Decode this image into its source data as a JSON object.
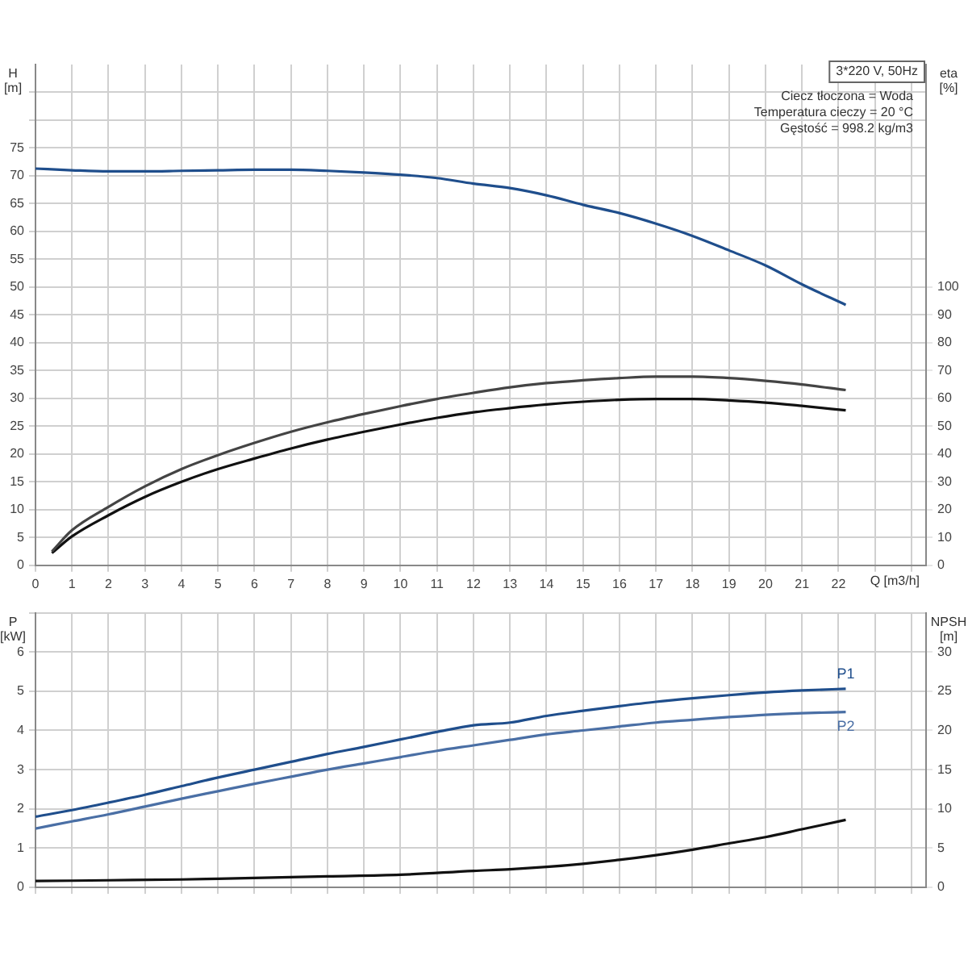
{
  "chart_data": [
    {
      "type": "line",
      "title": "3*220 V, 50Hz",
      "xlabel": "Q [m3/h]",
      "ylabel": "H [m]",
      "y2label": "eta [%]",
      "annotations": [
        "Ciecz tłoczona = Woda",
        "Temperatura cieczy = 20 °C",
        "Gęstość = 998.2 kg/m3"
      ],
      "xlim": [
        0,
        24.4
      ],
      "xticks": [
        0,
        1,
        2,
        3,
        4,
        5,
        6,
        7,
        8,
        9,
        10,
        11,
        12,
        13,
        14,
        15,
        16,
        17,
        18,
        19,
        20,
        21,
        22,
        {
          "value": 23,
          "label": null
        },
        {
          "value": 24,
          "label": null
        }
      ],
      "ylim": [
        0,
        90
      ],
      "yticks": [
        0,
        5,
        10,
        15,
        20,
        25,
        30,
        35,
        40,
        45,
        50,
        55,
        60,
        65,
        70,
        75,
        {
          "value": 80,
          "label": null
        },
        {
          "value": 85,
          "label": null
        }
      ],
      "y2lim": [
        0,
        180
      ],
      "y2ticks": [
        0,
        10,
        20,
        30,
        40,
        50,
        60,
        70,
        80,
        90,
        100
      ],
      "grid": true,
      "legend": false,
      "marker": "none",
      "series": [
        {
          "color": "#1f4e8c",
          "x": [
            0,
            1,
            2,
            3,
            4,
            5,
            6,
            7,
            8,
            9,
            10,
            11,
            12,
            13,
            14,
            15,
            16,
            17,
            18,
            19,
            20,
            21,
            22.2
          ],
          "values": [
            71.3,
            71.0,
            70.8,
            70.8,
            70.9,
            71.0,
            71.1,
            71.1,
            70.9,
            70.6,
            70.2,
            69.6,
            68.6,
            67.8,
            66.5,
            64.8,
            63.3,
            61.4,
            59.2,
            56.6,
            53.9,
            50.5,
            46.8
          ]
        },
        {
          "color": "#444444",
          "axis": "y2",
          "x": [
            0.45,
            1,
            2,
            3,
            4,
            5,
            6,
            7,
            8,
            9,
            10,
            11,
            12,
            13,
            14,
            15,
            16,
            17,
            18,
            19,
            20,
            21,
            22.2
          ],
          "values": [
            5,
            12.6,
            21,
            28.4,
            34.6,
            39.6,
            44,
            48,
            51.4,
            54.4,
            57.2,
            59.8,
            62,
            64,
            65.5,
            66.5,
            67.3,
            67.8,
            67.8,
            67.3,
            66.3,
            65,
            63
          ]
        },
        {
          "color": "#111111",
          "axis": "y2",
          "x": [
            0.45,
            1,
            2,
            3,
            4,
            5,
            6,
            7,
            8,
            9,
            10,
            11,
            12,
            13,
            14,
            15,
            16,
            17,
            18,
            19,
            20,
            21,
            22.2
          ],
          "values": [
            4.4,
            10.4,
            18,
            24.6,
            30,
            34.6,
            38.4,
            42,
            45.2,
            48,
            50.6,
            53,
            55,
            56.5,
            57.8,
            58.8,
            59.5,
            59.8,
            59.8,
            59.3,
            58.5,
            57.3,
            55.7
          ]
        }
      ]
    },
    {
      "type": "line",
      "ylabel": "P [kW]",
      "y2label": "NPSH [m]",
      "xlim": [
        0,
        24.4
      ],
      "xticks": [
        0,
        1,
        2,
        3,
        4,
        5,
        6,
        7,
        8,
        9,
        10,
        11,
        12,
        13,
        14,
        15,
        16,
        17,
        18,
        19,
        20,
        21,
        22,
        23,
        24
      ],
      "ylim": [
        0,
        7
      ],
      "yticks": [
        0,
        1,
        2,
        3,
        4,
        5,
        6,
        {
          "value": 7,
          "label": null
        }
      ],
      "y2lim": [
        0,
        35
      ],
      "y2ticks": [
        0,
        5,
        10,
        15,
        20,
        25,
        30
      ],
      "grid": true,
      "legend": false,
      "marker": "none",
      "tick_labels": "y",
      "series": [
        {
          "name": "P1",
          "color": "#1f4e8c",
          "x": [
            0,
            1,
            2,
            3,
            4,
            5,
            6,
            7,
            8,
            9,
            10,
            11,
            12,
            13,
            14,
            15,
            16,
            17,
            18,
            19,
            20,
            21,
            22.2
          ],
          "values": [
            1.8,
            1.97,
            2.16,
            2.36,
            2.58,
            2.8,
            3.0,
            3.2,
            3.4,
            3.58,
            3.77,
            3.96,
            4.13,
            4.2,
            4.37,
            4.5,
            4.62,
            4.73,
            4.82,
            4.9,
            4.97,
            5.02,
            5.06
          ]
        },
        {
          "name": "P2",
          "color": "#4a6fa5",
          "x": [
            0,
            1,
            2,
            3,
            4,
            5,
            6,
            7,
            8,
            9,
            10,
            11,
            12,
            13,
            14,
            15,
            16,
            17,
            18,
            19,
            20,
            21,
            22.2
          ],
          "values": [
            1.5,
            1.68,
            1.86,
            2.06,
            2.26,
            2.45,
            2.64,
            2.82,
            3.0,
            3.16,
            3.32,
            3.48,
            3.62,
            3.76,
            3.9,
            4.0,
            4.1,
            4.2,
            4.27,
            4.34,
            4.4,
            4.44,
            4.47
          ]
        },
        {
          "color": "#111111",
          "axis": "y2",
          "x": [
            0,
            2,
            4,
            5,
            6,
            8,
            10,
            12,
            13,
            14,
            15,
            16,
            17,
            18,
            19,
            20,
            21,
            22.2
          ],
          "values": [
            0.8,
            0.9,
            1.0,
            1.1,
            1.2,
            1.4,
            1.6,
            2.1,
            2.3,
            2.6,
            3.0,
            3.5,
            4.1,
            4.8,
            5.6,
            6.4,
            7.4,
            8.6
          ]
        }
      ]
    }
  ]
}
